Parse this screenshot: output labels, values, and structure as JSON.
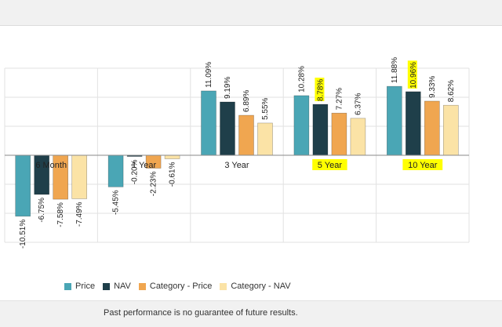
{
  "chart_data": {
    "type": "bar",
    "categories": [
      "6 Month",
      "1 Year",
      "3 Year",
      "5 Year",
      "10 Year"
    ],
    "series": [
      {
        "name": "Price",
        "color": "#4aa6b5",
        "values": [
          -10.51,
          -5.45,
          11.09,
          10.28,
          11.88
        ],
        "labels": [
          "-10.51%",
          "-5.45%",
          "11.09%",
          "10.28%",
          "11.88%"
        ]
      },
      {
        "name": "NAV",
        "color": "#1f3f4a",
        "values": [
          -6.75,
          -0.2,
          9.19,
          8.78,
          10.96
        ],
        "labels": [
          "-6.75%",
          "-0.20%",
          "9.19%",
          "8.78%",
          "10.96%"
        ]
      },
      {
        "name": "Category - Price",
        "color": "#f0a650",
        "values": [
          -7.58,
          -2.23,
          6.89,
          7.27,
          9.33
        ],
        "labels": [
          "-7.58%",
          "-2.23%",
          "6.89%",
          "7.27%",
          "9.33%"
        ]
      },
      {
        "name": "Category - NAV",
        "color": "#fbe3a6",
        "values": [
          -7.49,
          -0.61,
          5.55,
          6.37,
          8.62
        ],
        "labels": [
          "-7.49%",
          "-0.61%",
          "5.55%",
          "6.37%",
          "8.62%"
        ]
      }
    ],
    "highlighted_categories": [
      "5 Year",
      "10 Year"
    ],
    "highlighted_labels": [
      {
        "series": "NAV",
        "category": "5 Year"
      },
      {
        "series": "NAV",
        "category": "10 Year"
      }
    ],
    "highlight_color": "#ffff00",
    "ylim": [
      -15,
      15
    ],
    "grid": true,
    "legend_position": "bottom"
  },
  "footer": {
    "disclaimer": "Past performance is no guarantee of future results."
  }
}
